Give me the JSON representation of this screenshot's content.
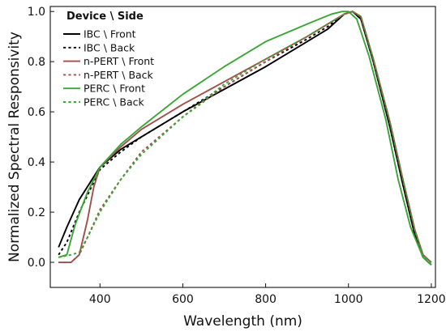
{
  "chart_data": {
    "type": "line",
    "xlabel": "Wavelength (nm)",
    "ylabel": "Normalized Spectral Responsivity",
    "xlim": [
      280,
      1210
    ],
    "ylim": [
      -0.1,
      1.02
    ],
    "xticks": [
      400,
      600,
      800,
      1000,
      1200
    ],
    "yticks": [
      0.0,
      0.2,
      0.4,
      0.6,
      0.8,
      1.0
    ],
    "xtick_labels": [
      "400",
      "600",
      "800",
      "1000",
      "1200"
    ],
    "ytick_labels": [
      "0.0",
      "0.2",
      "0.4",
      "0.6",
      "0.8",
      "1.0"
    ],
    "grid": false,
    "legend": {
      "title": "Device \\ Side",
      "placement": "top-left"
    },
    "series": [
      {
        "name": "IBC \\ Front",
        "color": "#000000",
        "dash": "solid",
        "points": [
          [
            300,
            0.06
          ],
          [
            320,
            0.14
          ],
          [
            350,
            0.25
          ],
          [
            400,
            0.38
          ],
          [
            450,
            0.45
          ],
          [
            500,
            0.5
          ],
          [
            600,
            0.6
          ],
          [
            700,
            0.69
          ],
          [
            800,
            0.78
          ],
          [
            900,
            0.88
          ],
          [
            950,
            0.93
          ],
          [
            990,
            0.99
          ],
          [
            1010,
            1.0
          ],
          [
            1030,
            0.97
          ],
          [
            1060,
            0.8
          ],
          [
            1100,
            0.54
          ],
          [
            1130,
            0.32
          ],
          [
            1160,
            0.11
          ],
          [
            1180,
            0.02
          ],
          [
            1200,
            -0.01
          ]
        ]
      },
      {
        "name": "IBC \\ Back",
        "color": "#000000",
        "dash": "dotted",
        "points": [
          [
            300,
            0.03
          ],
          [
            320,
            0.08
          ],
          [
            350,
            0.2
          ],
          [
            400,
            0.37
          ],
          [
            450,
            0.44
          ],
          [
            500,
            0.5
          ],
          [
            600,
            0.6
          ],
          [
            700,
            0.7
          ],
          [
            800,
            0.8
          ],
          [
            900,
            0.89
          ],
          [
            950,
            0.94
          ],
          [
            990,
            0.99
          ],
          [
            1010,
            1.0
          ],
          [
            1030,
            0.97
          ],
          [
            1060,
            0.8
          ],
          [
            1100,
            0.54
          ],
          [
            1130,
            0.32
          ],
          [
            1160,
            0.11
          ],
          [
            1180,
            0.02
          ],
          [
            1200,
            -0.01
          ]
        ]
      },
      {
        "name": "n-PERT \\ Front",
        "color": "#a0504a",
        "dash": "solid",
        "points": [
          [
            300,
            0.0
          ],
          [
            330,
            0.0
          ],
          [
            350,
            0.03
          ],
          [
            370,
            0.17
          ],
          [
            385,
            0.3
          ],
          [
            400,
            0.38
          ],
          [
            450,
            0.46
          ],
          [
            500,
            0.53
          ],
          [
            600,
            0.63
          ],
          [
            700,
            0.72
          ],
          [
            800,
            0.81
          ],
          [
            900,
            0.9
          ],
          [
            950,
            0.95
          ],
          [
            990,
            0.99
          ],
          [
            1010,
            1.0
          ],
          [
            1030,
            0.98
          ],
          [
            1060,
            0.81
          ],
          [
            1100,
            0.56
          ],
          [
            1130,
            0.34
          ],
          [
            1160,
            0.13
          ],
          [
            1180,
            0.03
          ],
          [
            1200,
            0.0
          ]
        ]
      },
      {
        "name": "n-PERT \\ Back",
        "color": "#a0504a",
        "dash": "dotted",
        "points": [
          [
            300,
            0.0
          ],
          [
            330,
            0.0
          ],
          [
            350,
            0.03
          ],
          [
            370,
            0.1
          ],
          [
            400,
            0.21
          ],
          [
            450,
            0.33
          ],
          [
            500,
            0.44
          ],
          [
            600,
            0.58
          ],
          [
            700,
            0.7
          ],
          [
            800,
            0.8
          ],
          [
            900,
            0.9
          ],
          [
            950,
            0.95
          ],
          [
            990,
            0.99
          ],
          [
            1010,
            1.0
          ],
          [
            1030,
            0.98
          ],
          [
            1060,
            0.81
          ],
          [
            1100,
            0.56
          ],
          [
            1130,
            0.34
          ],
          [
            1160,
            0.13
          ],
          [
            1180,
            0.03
          ],
          [
            1200,
            0.0
          ]
        ]
      },
      {
        "name": "PERC \\ Front",
        "color": "#3aa635",
        "dash": "solid",
        "points": [
          [
            300,
            0.02
          ],
          [
            320,
            0.03
          ],
          [
            340,
            0.15
          ],
          [
            370,
            0.28
          ],
          [
            400,
            0.38
          ],
          [
            450,
            0.47
          ],
          [
            500,
            0.54
          ],
          [
            600,
            0.67
          ],
          [
            700,
            0.78
          ],
          [
            800,
            0.88
          ],
          [
            900,
            0.95
          ],
          [
            960,
            0.99
          ],
          [
            985,
            1.0
          ],
          [
            1000,
            1.0
          ],
          [
            1020,
            0.97
          ],
          [
            1050,
            0.82
          ],
          [
            1090,
            0.57
          ],
          [
            1120,
            0.33
          ],
          [
            1150,
            0.14
          ],
          [
            1180,
            0.02
          ],
          [
            1200,
            -0.01
          ]
        ]
      },
      {
        "name": "PERC \\ Back",
        "color": "#3aa635",
        "dash": "dotted",
        "points": [
          [
            300,
            0.02
          ],
          [
            330,
            0.03
          ],
          [
            350,
            0.04
          ],
          [
            370,
            0.1
          ],
          [
            400,
            0.2
          ],
          [
            450,
            0.33
          ],
          [
            500,
            0.43
          ],
          [
            600,
            0.58
          ],
          [
            700,
            0.71
          ],
          [
            800,
            0.81
          ],
          [
            900,
            0.9
          ],
          [
            950,
            0.95
          ],
          [
            990,
            0.99
          ],
          [
            1010,
            1.0
          ],
          [
            1030,
            0.98
          ],
          [
            1060,
            0.81
          ],
          [
            1100,
            0.56
          ],
          [
            1130,
            0.34
          ],
          [
            1160,
            0.13
          ],
          [
            1180,
            0.03
          ],
          [
            1200,
            0.0
          ]
        ]
      }
    ]
  }
}
